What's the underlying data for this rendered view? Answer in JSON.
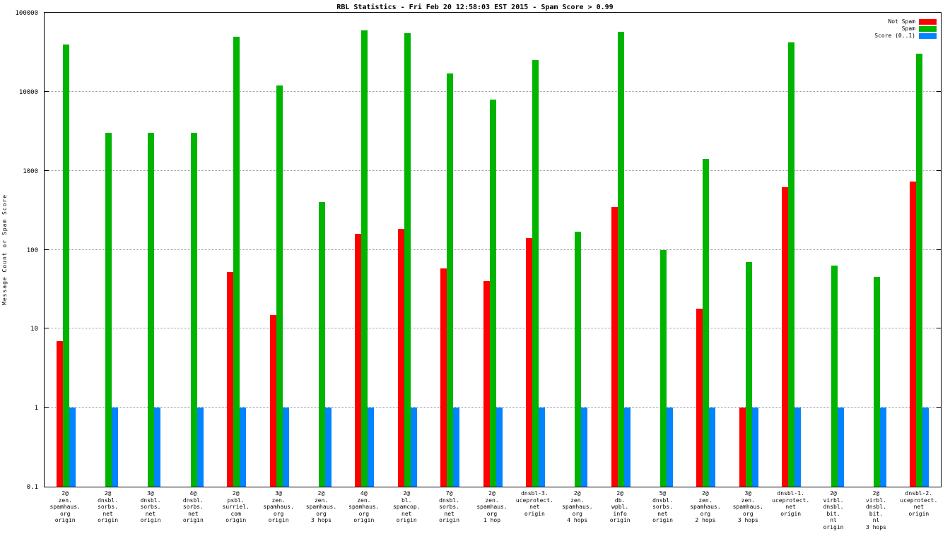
{
  "chart_data": {
    "type": "bar",
    "title": "RBL Statistics - Fri Feb 20 12:58:03 EST 2015 - Spam Score > 0.99",
    "ylabel": "Message Count or Spam Score",
    "yscale": "log",
    "ylim": [
      0.1,
      100000
    ],
    "ytick_labels": [
      "0.1",
      "1",
      "10",
      "100",
      "1000",
      "10000",
      "100000"
    ],
    "grid": true,
    "legend_position": "top-right",
    "categories": [
      [
        "2@",
        "zen.",
        "spamhaus.",
        "org",
        "origin"
      ],
      [
        "2@",
        "dnsbl.",
        "sorbs.",
        "net",
        "origin"
      ],
      [
        "3@",
        "dnsbl.",
        "sorbs.",
        "net",
        "origin"
      ],
      [
        "4@",
        "dnsbl.",
        "sorbs.",
        "net",
        "origin"
      ],
      [
        "2@",
        "psbl.",
        "surriel.",
        "com",
        "origin"
      ],
      [
        "3@",
        "zen.",
        "spamhaus.",
        "org",
        "origin"
      ],
      [
        "2@",
        "zen.",
        "spamhaus.",
        "org",
        "3 hops"
      ],
      [
        "4@",
        "zen.",
        "spamhaus.",
        "org",
        "origin"
      ],
      [
        "2@",
        "bl.",
        "spamcop.",
        "net",
        "origin"
      ],
      [
        "7@",
        "dnsbl.",
        "sorbs.",
        "net",
        "origin"
      ],
      [
        "2@",
        "zen.",
        "spamhaus.",
        "org",
        "1 hop"
      ],
      [
        "dnsbl-3.",
        "uceprotect.",
        "net",
        "origin"
      ],
      [
        "2@",
        "zen.",
        "spamhaus.",
        "org",
        "4 hops"
      ],
      [
        "2@",
        "db.",
        "wpbl.",
        "info",
        "origin"
      ],
      [
        "5@",
        "dnsbl.",
        "sorbs.",
        "net",
        "origin"
      ],
      [
        "2@",
        "zen.",
        "spamhaus.",
        "org",
        "2 hops"
      ],
      [
        "3@",
        "zen.",
        "spamhaus.",
        "org",
        "3 hops"
      ],
      [
        "dnsbl-1.",
        "uceprotect.",
        "net",
        "origin"
      ],
      [
        "2@",
        "virbl.",
        "dnsbl.",
        "bit.",
        "nl",
        "origin"
      ],
      [
        "2@",
        "virbl.",
        "dnsbl.",
        "bit.",
        "nl",
        "3 hops"
      ],
      [
        "dnsbl-2.",
        "uceprotect.",
        "net",
        "origin"
      ]
    ],
    "series": [
      {
        "name": "Not Spam",
        "color": "#ff0000",
        "values": [
          7,
          null,
          null,
          null,
          52,
          15,
          null,
          160,
          185,
          58,
          40,
          140,
          null,
          350,
          null,
          18,
          1,
          620,
          null,
          null,
          730
        ]
      },
      {
        "name": "Spam",
        "color": "#00b400",
        "values": [
          40000,
          3000,
          3000,
          3000,
          50000,
          12000,
          400,
          60000,
          55000,
          17000,
          8000,
          25000,
          170,
          57000,
          100,
          1400,
          70,
          42000,
          63,
          45,
          30000
        ]
      },
      {
        "name": "Score (0..1)",
        "color": "#0084ff",
        "values": [
          1,
          1,
          1,
          1,
          1,
          1,
          1,
          1,
          1,
          1,
          1,
          1,
          1,
          1,
          1,
          1,
          1,
          1,
          1,
          1,
          1
        ]
      }
    ]
  }
}
